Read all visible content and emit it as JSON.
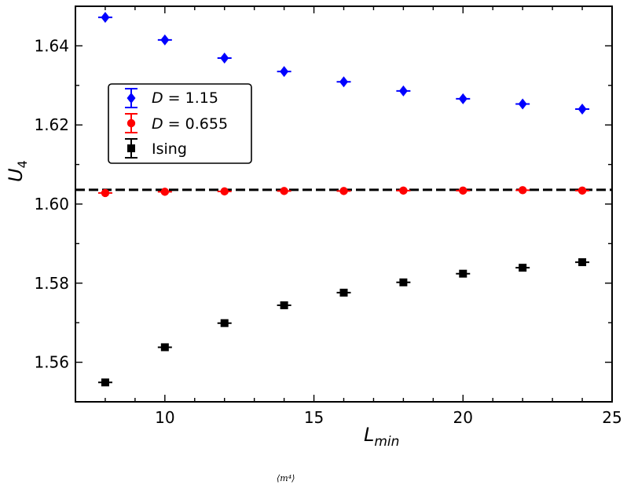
{
  "chart_data": {
    "type": "scatter",
    "xlabel": "L_min",
    "ylabel": "U_4",
    "xlim": [
      7,
      25
    ],
    "ylim": [
      1.55,
      1.65
    ],
    "x_ticks": [
      10,
      15,
      20,
      25
    ],
    "y_ticks": [
      1.56,
      1.58,
      1.6,
      1.62,
      1.64
    ],
    "x_tick_labels": [
      "10",
      "15",
      "20",
      "25"
    ],
    "y_tick_labels": [
      "1.56",
      "1.58",
      "1.60",
      "1.62",
      "1.64"
    ],
    "reference_line": {
      "y": 1.6036,
      "style": "dashed",
      "color": "#000000"
    },
    "legend_position": "upper-left",
    "grid": false,
    "series": [
      {
        "name": "D = 1.15",
        "marker": "diamond",
        "color": "#0000ff",
        "x": [
          8,
          10,
          12,
          14,
          16,
          18,
          20,
          22,
          24
        ],
        "y": [
          1.6472,
          1.6415,
          1.6369,
          1.6335,
          1.6309,
          1.6286,
          1.6266,
          1.6253,
          1.624
        ]
      },
      {
        "name": "D = 0.655",
        "marker": "circle",
        "color": "#ff0000",
        "x": [
          8,
          10,
          12,
          14,
          16,
          18,
          20,
          22,
          24
        ],
        "y": [
          1.6028,
          1.6031,
          1.6032,
          1.6033,
          1.6033,
          1.6034,
          1.6034,
          1.6035,
          1.6034
        ]
      },
      {
        "name": "Ising",
        "marker": "square",
        "color": "#000000",
        "x": [
          8,
          10,
          12,
          14,
          16,
          18,
          20,
          22,
          24
        ],
        "y": [
          1.5549,
          1.5638,
          1.5699,
          1.5744,
          1.5776,
          1.5802,
          1.5824,
          1.5839,
          1.5853
        ]
      }
    ]
  },
  "labels": {
    "ylabel_main": "U",
    "ylabel_sub": "4",
    "xlabel_main": "L",
    "xlabel_sub": "min",
    "legend_italic": "D",
    "legend_eq_1": " = 1.15",
    "legend_eq_2": " = 0.655",
    "legend_ising": "Ising"
  },
  "caption_fragment": "⟨m⁴⟩"
}
